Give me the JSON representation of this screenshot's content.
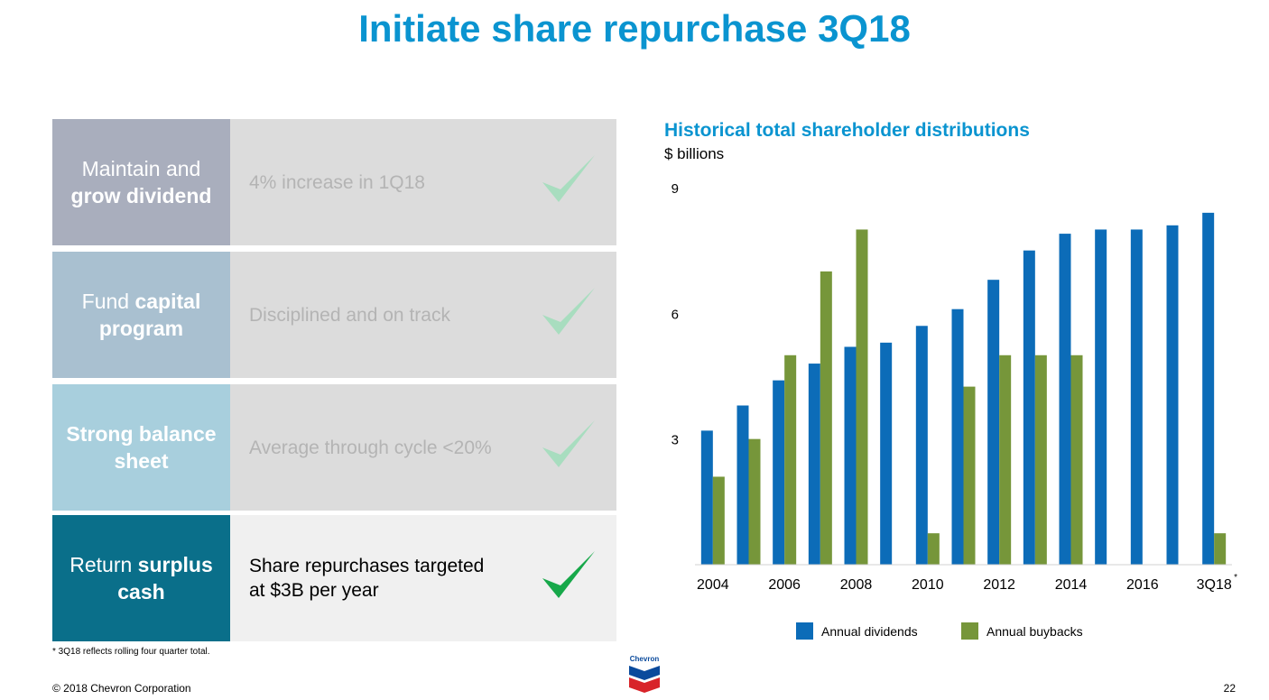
{
  "title": "Initiate share repurchase 3Q18",
  "pillars": [
    {
      "label_pre": "Maintain and",
      "label_bold": "grow dividend",
      "label_post": "",
      "desc": "4% increase in 1Q18",
      "color": "#a9aebd"
    },
    {
      "label_pre": "Fund ",
      "label_bold": "capital program",
      "label_post": "",
      "desc": "Disciplined and on track",
      "color": "#a9c0d0"
    },
    {
      "label_pre": "",
      "label_bold": "Strong balance sheet",
      "label_post": "",
      "desc": "Average through cycle <20%",
      "color": "#a8cfdd"
    },
    {
      "label_pre": "Return ",
      "label_bold": "surplus cash",
      "label_post": "",
      "desc": "Share repurchases targeted at $3B per year",
      "color": "#0a6f8a"
    }
  ],
  "check_colors": {
    "faded": "#a8ddbf",
    "active": "#17a84a"
  },
  "footnote": "* 3Q18 reflects rolling four quarter total.",
  "copyright": "© 2018 Chevron Corporation",
  "page_number": "22",
  "logo_text": "Chevron",
  "chart_data": {
    "type": "bar",
    "title": "Historical total shareholder distributions",
    "subtitle": "$ billions",
    "categories": [
      "2004",
      "2005",
      "2006",
      "2007",
      "2008",
      "2009",
      "2010",
      "2011",
      "2012",
      "2013",
      "2014",
      "2015",
      "2016",
      "2017",
      "3Q18"
    ],
    "x_tick_labels": [
      "2004",
      "",
      "2006",
      "",
      "2008",
      "",
      "2010",
      "",
      "2012",
      "",
      "2014",
      "",
      "2016",
      "",
      "3Q18"
    ],
    "x_tick_suffix": "*",
    "series": [
      {
        "name": "Annual dividends",
        "color": "#0c6cb8",
        "values": [
          3.2,
          3.8,
          4.4,
          4.8,
          5.2,
          5.3,
          5.7,
          6.1,
          6.8,
          7.5,
          7.9,
          8.0,
          8.0,
          8.1,
          8.4
        ]
      },
      {
        "name": "Annual buybacks",
        "color": "#76963a",
        "values": [
          2.1,
          3.0,
          5.0,
          7.0,
          8.0,
          0,
          0.75,
          4.25,
          5.0,
          5.0,
          5.0,
          0,
          0,
          0,
          0.75
        ]
      }
    ],
    "yticks": [
      3,
      6,
      9
    ],
    "ylim": [
      0,
      9
    ],
    "grid": false,
    "legend_position": "bottom"
  }
}
